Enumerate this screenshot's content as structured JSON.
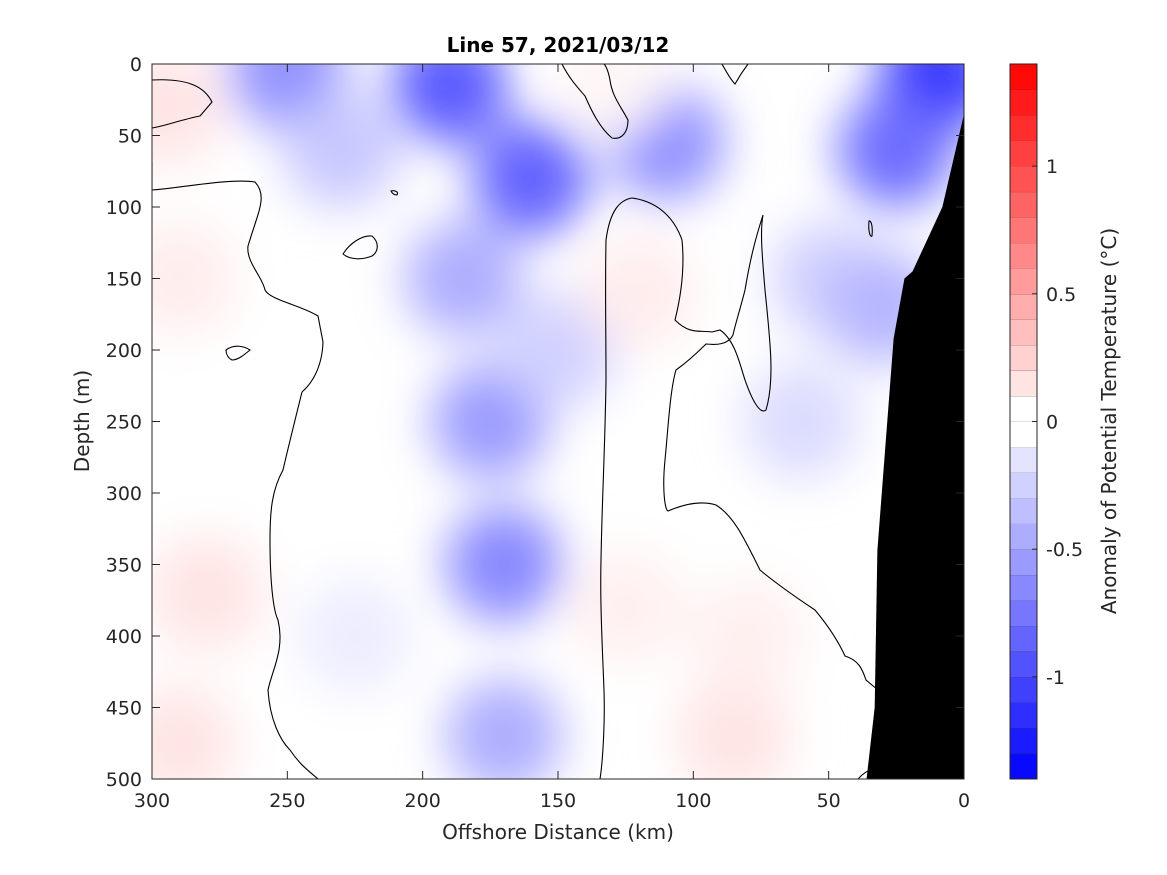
{
  "chart_data": {
    "type": "heatmap",
    "title": "Line 57, 2021/03/12",
    "xlabel": "Offshore Distance (km)",
    "ylabel": "Depth (m)",
    "colorbar_label": "Anomaly of Potential Temperature (°C)",
    "xlim": [
      300,
      0
    ],
    "ylim": [
      0,
      500
    ],
    "y_reversed": true,
    "x_ticks": [
      "300",
      "250",
      "200",
      "150",
      "100",
      "50",
      "0"
    ],
    "x_tick_values": [
      300,
      250,
      200,
      150,
      100,
      50,
      0
    ],
    "y_ticks": [
      "0",
      "50",
      "100",
      "150",
      "200",
      "250",
      "300",
      "350",
      "400",
      "450",
      "500"
    ],
    "y_tick_values": [
      0,
      50,
      100,
      150,
      200,
      250,
      300,
      350,
      400,
      450,
      500
    ],
    "colorbar_range": [
      -1.4,
      1.4
    ],
    "colorbar_levels": 28,
    "colorbar_ticks": [
      "-1",
      "-0.5",
      "0",
      "0.5",
      "1"
    ],
    "colorbar_tick_values": [
      -1,
      -0.5,
      0,
      0.5,
      1
    ],
    "colormap": {
      "negative": "#0000ff",
      "zero": "#ffffff",
      "positive": "#ff0000"
    },
    "bathymetry_color": "#000000",
    "contour_level": 0,
    "contour_color": "#000000",
    "bathymetry": {
      "x": [
        36,
        33,
        32,
        26,
        22,
        19,
        8,
        0
      ],
      "y": [
        500,
        450,
        340,
        192,
        150,
        145,
        100,
        35
      ]
    },
    "anomaly_features": [
      {
        "x": 190,
        "y": 15,
        "value": -0.9
      },
      {
        "x": 160,
        "y": 80,
        "value": -0.85
      },
      {
        "x": 110,
        "y": 55,
        "value": -0.6
      },
      {
        "x": 10,
        "y": 10,
        "value": -1.1
      },
      {
        "x": 25,
        "y": 60,
        "value": -0.8
      },
      {
        "x": 250,
        "y": 5,
        "value": -0.6
      },
      {
        "x": 230,
        "y": 60,
        "value": -0.3
      },
      {
        "x": 170,
        "y": 350,
        "value": -0.65
      },
      {
        "x": 175,
        "y": 250,
        "value": -0.55
      },
      {
        "x": 185,
        "y": 150,
        "value": -0.45
      },
      {
        "x": 170,
        "y": 470,
        "value": -0.45
      },
      {
        "x": 150,
        "y": 200,
        "value": -0.25
      },
      {
        "x": 60,
        "y": 250,
        "value": -0.2
      },
      {
        "x": 50,
        "y": 150,
        "value": -0.25
      },
      {
        "x": 30,
        "y": 170,
        "value": -0.4
      },
      {
        "x": 225,
        "y": 400,
        "value": -0.1
      },
      {
        "x": 295,
        "y": 30,
        "value": 0.15
      },
      {
        "x": 290,
        "y": 150,
        "value": 0.1
      },
      {
        "x": 280,
        "y": 370,
        "value": 0.15
      },
      {
        "x": 290,
        "y": 475,
        "value": 0.15
      },
      {
        "x": 120,
        "y": 160,
        "value": 0.1
      },
      {
        "x": 85,
        "y": 470,
        "value": 0.15
      },
      {
        "x": 80,
        "y": 400,
        "value": 0.08
      },
      {
        "x": 125,
        "y": 380,
        "value": 0.08
      },
      {
        "x": 130,
        "y": 10,
        "value": 0.05
      }
    ]
  }
}
